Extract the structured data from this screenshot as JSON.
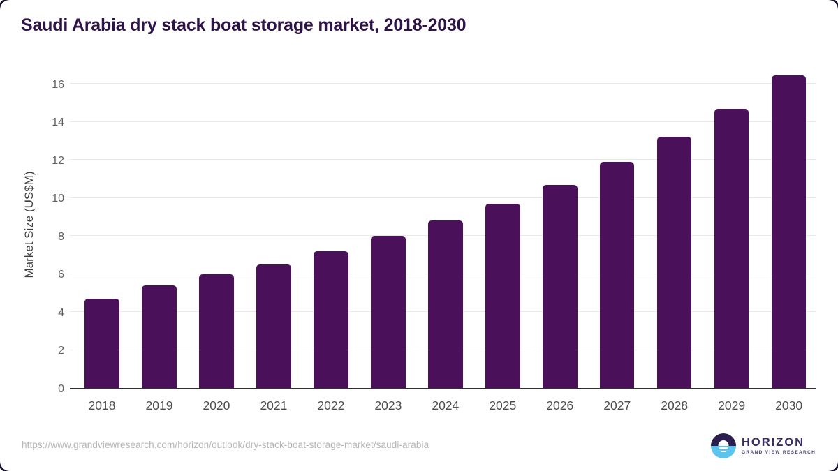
{
  "chart_data": {
    "type": "bar",
    "title": "Saudi Arabia dry stack boat storage market, 2018-2030",
    "xlabel": "",
    "ylabel": "Market Size (US$M)",
    "categories": [
      "2018",
      "2019",
      "2020",
      "2021",
      "2022",
      "2023",
      "2024",
      "2025",
      "2026",
      "2027",
      "2028",
      "2029",
      "2030"
    ],
    "values": [
      4.67,
      5.37,
      5.96,
      6.47,
      7.18,
      7.98,
      8.78,
      9.66,
      10.66,
      11.88,
      13.19,
      14.66,
      16.41
    ],
    "yticks": [
      0,
      2,
      4,
      6,
      8,
      10,
      12,
      14,
      16
    ],
    "ylim": [
      0,
      16.9
    ],
    "grid": true,
    "legend_position": "none",
    "bar_color": "#4a115a",
    "gridline_color": "#e9e9e9",
    "axis_line_color": "#2e2e2e"
  },
  "footer": {
    "url": "https://www.grandviewresearch.com/horizon/outlook/dry-stack-boat-storage-market/saudi-arabia",
    "logo": {
      "brand": "HORIZON",
      "tagline": "GRAND VIEW RESEARCH",
      "circle_top_color": "#2b1e4e",
      "circle_bottom_color": "#5cc3ea"
    }
  },
  "colors": {
    "title_text": "#2e1348",
    "tick_text": "#606060",
    "category_text": "#4d4d4d",
    "url_text": "#b6b6b6",
    "background": "#ffffff",
    "frame_border": "#181431"
  }
}
